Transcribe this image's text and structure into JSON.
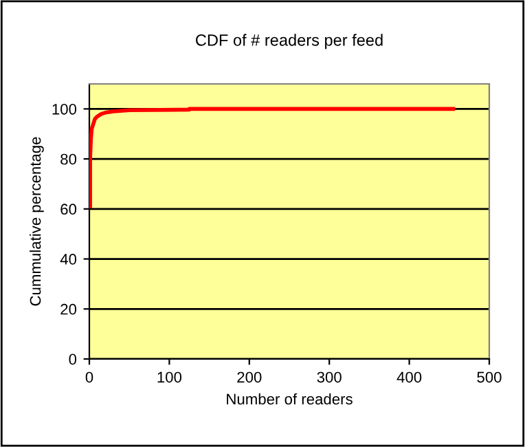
{
  "chart_data": {
    "type": "line",
    "title": "CDF of # readers per feed",
    "xlabel": "Number of readers",
    "ylabel": "Cummulative percentage",
    "series": [
      {
        "color": "#ff0000",
        "x": [
          1,
          1,
          2,
          3,
          5,
          7,
          10,
          15,
          20,
          30,
          50,
          125,
          125,
          455
        ],
        "values": [
          61,
          80,
          88,
          92,
          94,
          96,
          97,
          98,
          98.5,
          99,
          99.5,
          99.7,
          100,
          100
        ]
      }
    ],
    "xlim": [
      0,
      500
    ],
    "xticks": [
      0,
      100,
      200,
      300,
      400,
      500
    ],
    "ylim": [
      0,
      110
    ],
    "yticks": [
      0,
      20,
      40,
      60,
      80,
      100
    ],
    "grid": "y",
    "marker": "none",
    "line_style": "solid"
  }
}
